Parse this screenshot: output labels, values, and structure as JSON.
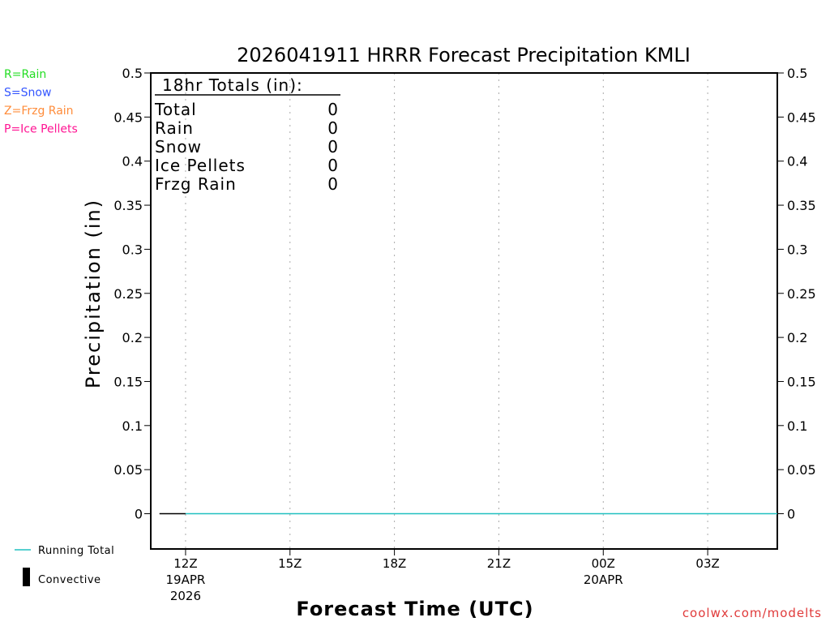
{
  "chart_data": {
    "type": "line",
    "title": "2026041911 HRRR Forecast Precipitation KMLI",
    "xlabel": "Forecast Time (UTC)",
    "ylabel": "Precipitation (in)",
    "ylim": [
      -0.04,
      0.5
    ],
    "xlim_hours": [
      11,
      29
    ],
    "grid": "vertical dotted",
    "y_ticks": [
      0,
      0.05,
      0.1,
      0.15,
      0.2,
      0.25,
      0.3,
      0.35,
      0.4,
      0.45,
      0.5
    ],
    "y_tick_labels": [
      "0",
      "0.05",
      "0.1",
      "0.15",
      "0.2",
      "0.25",
      "0.3",
      "0.35",
      "0.4",
      "0.45",
      "0.5"
    ],
    "x_ticks": [
      {
        "hour": 12,
        "label": "12Z",
        "sub1": "19APR",
        "sub2": "2026"
      },
      {
        "hour": 15,
        "label": "15Z"
      },
      {
        "hour": 18,
        "label": "18Z"
      },
      {
        "hour": 21,
        "label": "21Z"
      },
      {
        "hour": 24,
        "label": "00Z",
        "sub1": "20APR"
      },
      {
        "hour": 27,
        "label": "03Z"
      }
    ],
    "series": [
      {
        "name": "Initial",
        "color": "#000000",
        "x": [
          11.25,
          12
        ],
        "values": [
          0,
          0
        ]
      },
      {
        "name": "Running Total",
        "color": "#20c0c0",
        "x": [
          12,
          29
        ],
        "values": [
          0,
          0
        ]
      }
    ],
    "totals_box": {
      "header": "18hr Totals (in):",
      "rows": [
        {
          "label": "Total",
          "value": "0"
        },
        {
          "label": "Rain",
          "value": "0"
        },
        {
          "label": "Snow",
          "value": "0"
        },
        {
          "label": "Ice Pellets",
          "value": "0"
        },
        {
          "label": "Frzg Rain",
          "value": "0"
        }
      ]
    },
    "ptype_legend": [
      {
        "label": "R=Rain",
        "color": "#22dd22"
      },
      {
        "label": "S=Snow",
        "color": "#3355ff"
      },
      {
        "label": "Z=Frzg Rain",
        "color": "#ff8c3a"
      },
      {
        "label": "P=Ice Pellets",
        "color": "#ff1493"
      }
    ],
    "legend": {
      "running_total": "Running Total",
      "convective": "Convective"
    },
    "credit": "coolwx.com/modelts"
  }
}
